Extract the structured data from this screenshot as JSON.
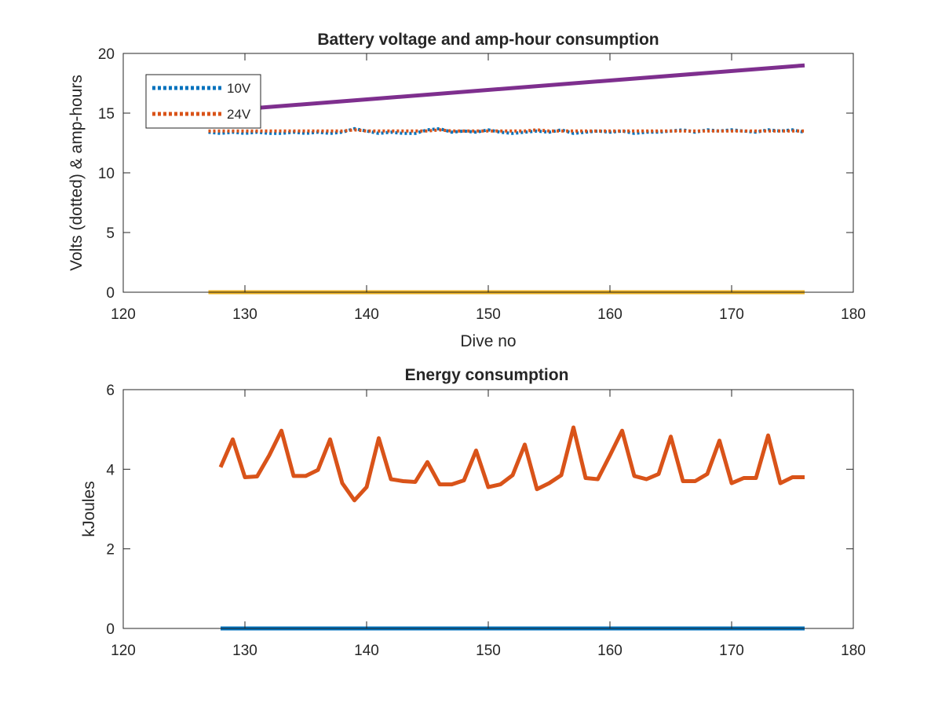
{
  "chart_data": [
    {
      "type": "line",
      "title": "Battery voltage and amp-hour consumption",
      "xlabel": "Dive no",
      "ylabel": "Volts (dotted) & amp-hours",
      "xlim": [
        120,
        180
      ],
      "ylim": [
        0,
        20
      ],
      "xticks": [
        120,
        130,
        140,
        150,
        160,
        170,
        180
      ],
      "yticks": [
        0,
        5,
        10,
        15,
        20
      ],
      "legend": {
        "placement": "top-left",
        "entries": [
          "10V",
          "24V"
        ]
      },
      "series": [
        {
          "name": "10V",
          "style": "dotted",
          "color": "#0072BD",
          "x": [
            127,
            128,
            129,
            130,
            131,
            132,
            133,
            134,
            135,
            136,
            137,
            138,
            139,
            140,
            141,
            142,
            143,
            144,
            145,
            146,
            147,
            148,
            149,
            150,
            151,
            152,
            153,
            154,
            155,
            156,
            157,
            158,
            159,
            160,
            161,
            162,
            163,
            164,
            165,
            166,
            167,
            168,
            169,
            170,
            171,
            172,
            173,
            174,
            175,
            176
          ],
          "values": [
            13.4,
            13.3,
            13.4,
            13.3,
            13.4,
            13.3,
            13.3,
            13.4,
            13.3,
            13.4,
            13.3,
            13.4,
            13.7,
            13.5,
            13.3,
            13.4,
            13.3,
            13.3,
            13.6,
            13.7,
            13.4,
            13.5,
            13.4,
            13.6,
            13.4,
            13.3,
            13.4,
            13.5,
            13.4,
            13.6,
            13.3,
            13.4,
            13.5,
            13.4,
            13.5,
            13.3,
            13.4,
            13.4,
            13.5,
            13.6,
            13.4,
            13.6,
            13.5,
            13.6,
            13.5,
            13.4,
            13.6,
            13.5,
            13.6,
            13.4
          ]
        },
        {
          "name": "24V",
          "style": "dotted",
          "color": "#D95319",
          "x": [
            127,
            128,
            129,
            130,
            131,
            132,
            133,
            134,
            135,
            136,
            137,
            138,
            139,
            140,
            141,
            142,
            143,
            144,
            145,
            146,
            147,
            148,
            149,
            150,
            151,
            152,
            153,
            154,
            155,
            156,
            157,
            158,
            159,
            160,
            161,
            162,
            163,
            164,
            165,
            166,
            167,
            168,
            169,
            170,
            171,
            172,
            173,
            174,
            175,
            176
          ],
          "values": [
            13.5,
            13.5,
            13.5,
            13.5,
            13.5,
            13.5,
            13.5,
            13.5,
            13.5,
            13.5,
            13.5,
            13.5,
            13.6,
            13.5,
            13.5,
            13.5,
            13.5,
            13.5,
            13.5,
            13.6,
            13.5,
            13.5,
            13.5,
            13.5,
            13.5,
            13.5,
            13.5,
            13.6,
            13.5,
            13.5,
            13.5,
            13.5,
            13.5,
            13.5,
            13.5,
            13.5,
            13.5,
            13.5,
            13.5,
            13.5,
            13.5,
            13.5,
            13.5,
            13.5,
            13.5,
            13.5,
            13.5,
            13.5,
            13.5,
            13.5
          ]
        },
        {
          "style": "solid",
          "color": "#EDB120",
          "x": [
            127,
            176
          ],
          "values": [
            0,
            0
          ]
        },
        {
          "style": "solid",
          "color": "#7E2F8E",
          "x": [
            128,
            176
          ],
          "values": [
            15.2,
            19.0
          ]
        }
      ]
    },
    {
      "type": "line",
      "title": "Energy consumption",
      "xlabel": "",
      "ylabel": "kJoules",
      "xlim": [
        120,
        180
      ],
      "ylim": [
        0,
        6
      ],
      "xticks": [
        120,
        130,
        140,
        150,
        160,
        170,
        180
      ],
      "yticks": [
        0,
        2,
        4,
        6
      ],
      "series": [
        {
          "style": "solid",
          "color": "#D95319",
          "x": [
            128,
            129,
            130,
            131,
            132,
            133,
            134,
            135,
            136,
            137,
            138,
            139,
            140,
            141,
            142,
            143,
            144,
            145,
            146,
            147,
            148,
            149,
            150,
            151,
            152,
            153,
            154,
            155,
            156,
            157,
            158,
            159,
            160,
            161,
            162,
            163,
            164,
            165,
            166,
            167,
            168,
            169,
            170,
            171,
            172,
            173,
            174,
            175,
            176
          ],
          "values": [
            4.05,
            4.75,
            3.8,
            3.82,
            4.35,
            4.97,
            3.83,
            3.83,
            3.98,
            4.75,
            3.65,
            3.22,
            3.55,
            4.78,
            3.75,
            3.7,
            3.68,
            4.18,
            3.62,
            3.62,
            3.72,
            4.47,
            3.55,
            3.62,
            3.85,
            4.62,
            3.5,
            3.65,
            3.85,
            5.05,
            3.78,
            3.75,
            4.35,
            4.97,
            3.83,
            3.75,
            3.88,
            4.82,
            3.7,
            3.7,
            3.88,
            4.72,
            3.65,
            3.78,
            3.78,
            4.85,
            3.65,
            3.8,
            3.8
          ]
        },
        {
          "style": "solid",
          "color": "#0072BD",
          "x": [
            128,
            176
          ],
          "values": [
            0,
            0
          ]
        }
      ]
    }
  ]
}
